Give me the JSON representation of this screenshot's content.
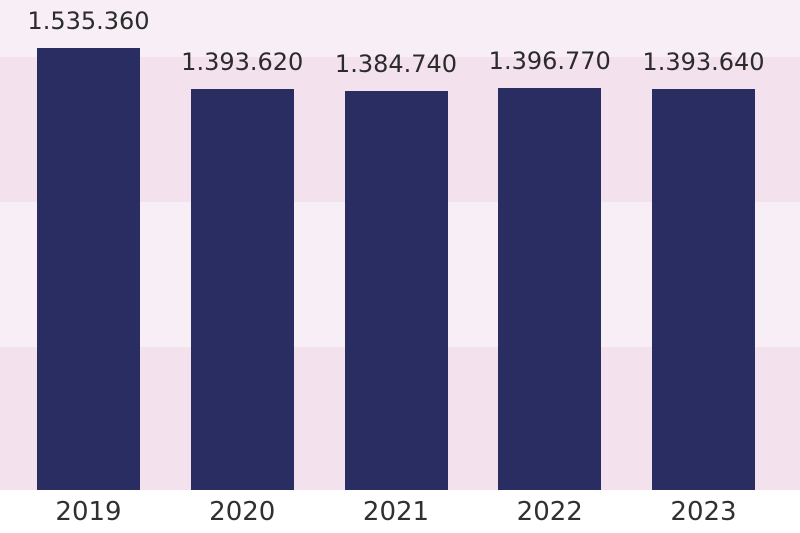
{
  "chart_data": {
    "type": "bar",
    "categories": [
      "2019",
      "2020",
      "2021",
      "2022",
      "2023"
    ],
    "values": [
      1535360,
      1393620,
      1384740,
      1396770,
      1393640
    ],
    "value_labels": [
      "1.535.360",
      "1.393.620",
      "1.384.740",
      "1.396.770",
      "1.393.640"
    ],
    "title": "",
    "xlabel": "",
    "ylabel": "",
    "ylim": [
      0,
      1535360
    ],
    "grid": "horizontal background bands, one per 500000 units",
    "legend": "none",
    "data_labels_position": "above-bars"
  },
  "colors": {
    "bar": "#292d62",
    "band_light": "#f7eff5",
    "band_pink": "#f3e2ed",
    "axis_area": "#ffffff",
    "label_text": "#2b2b2b",
    "tick_text": "#303030"
  }
}
